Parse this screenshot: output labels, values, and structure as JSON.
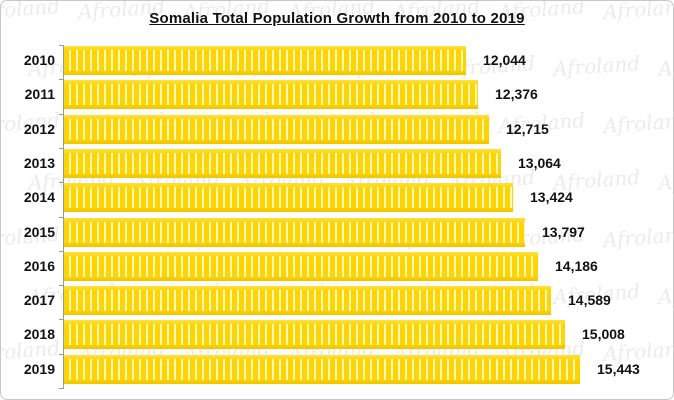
{
  "title": "Somalia Total Population Growth from 2010 to 2019",
  "watermark": {
    "text": "Afroland",
    "color": "#ececec"
  },
  "frame": {
    "border_color": "#c7c7c7",
    "background": "#ffffff"
  },
  "axis": {
    "line_color": "#9a9a9a"
  },
  "chart_data": {
    "type": "bar",
    "orientation": "horizontal",
    "title": "Somalia Total Population Growth from 2010 to 2019",
    "xlabel": "",
    "ylabel": "",
    "categories": [
      "2010",
      "2011",
      "2012",
      "2013",
      "2014",
      "2015",
      "2016",
      "2017",
      "2018",
      "2019"
    ],
    "values": [
      12044,
      12376,
      12715,
      13064,
      13424,
      13797,
      14186,
      14589,
      15008,
      15443
    ],
    "value_labels": [
      "12,044",
      "12,376",
      "12,715",
      "13,064",
      "13,424",
      "13,797",
      "14,186",
      "14,589",
      "15,008",
      "15,443"
    ],
    "xlim": [
      0,
      15443
    ],
    "grid": false,
    "legend": false,
    "bar_color": "#fed500",
    "bar_pattern": "vertical-stripes",
    "label_color": "#111111"
  }
}
